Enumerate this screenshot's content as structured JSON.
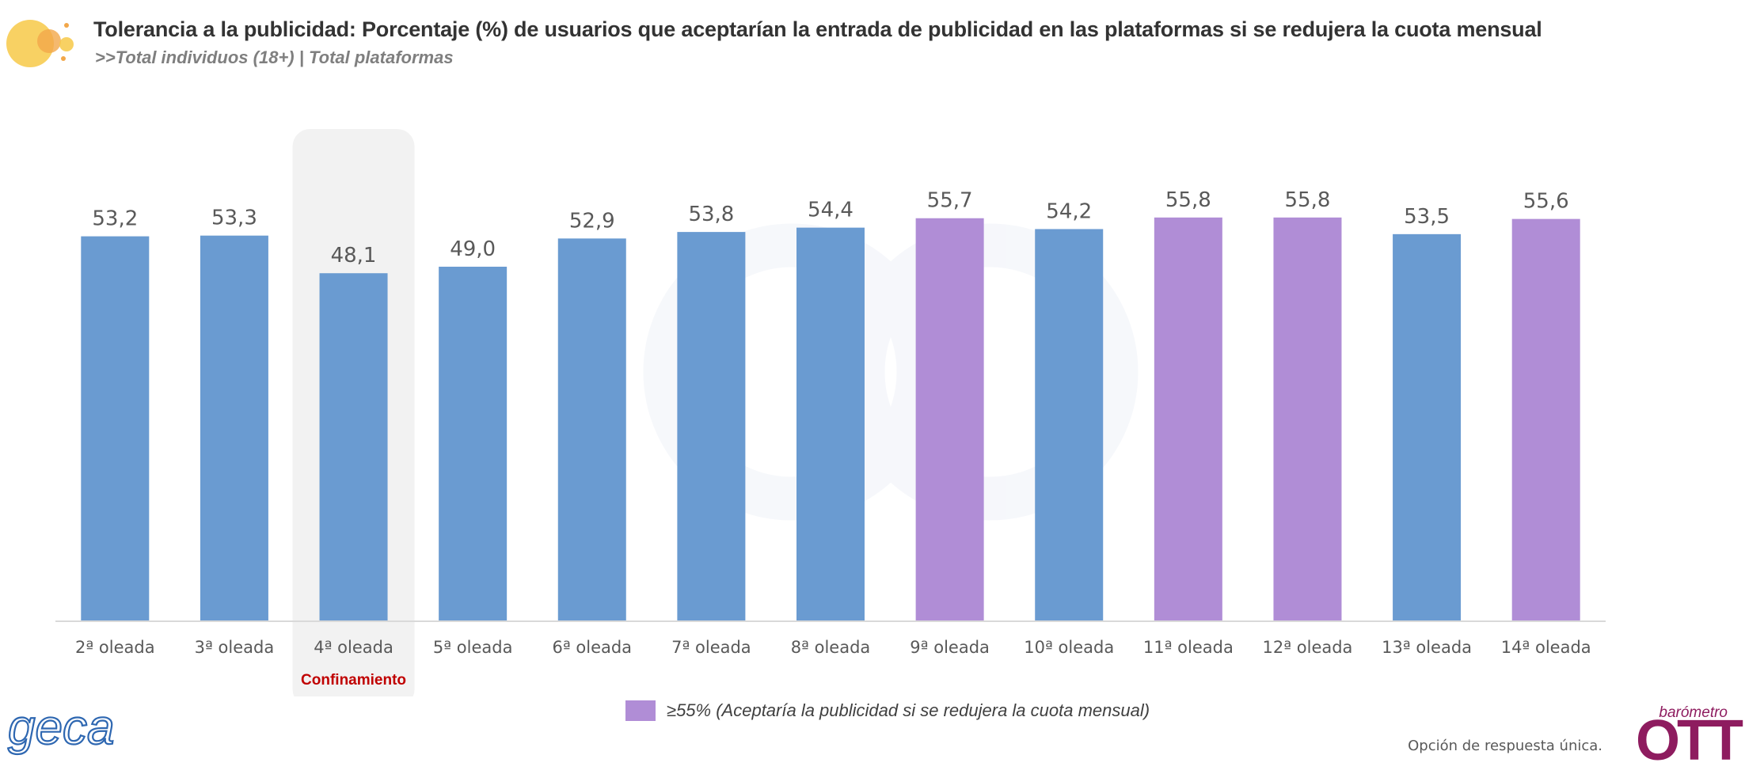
{
  "header": {
    "title": "Tolerancia a la publicidad:  Porcentaje (%) de usuarios que aceptarían la entrada de publicidad en las plataformas si se redujera la cuota mensual",
    "subtitle": ">>Total individuos (18+) | Total plataformas"
  },
  "chart_data": {
    "type": "bar",
    "categories": [
      "2ª oleada",
      "3ª oleada",
      "4ª oleada",
      "5ª oleada",
      "6ª oleada",
      "7ª oleada",
      "8ª oleada",
      "9ª oleada",
      "10ª oleada",
      "11ª oleada",
      "12ª oleada",
      "13ª oleada",
      "14ª oleada"
    ],
    "values": [
      53.2,
      53.3,
      48.1,
      49.0,
      52.9,
      53.8,
      54.4,
      55.7,
      54.2,
      55.8,
      55.8,
      53.5,
      55.6
    ],
    "value_labels": [
      "53,2",
      "53,3",
      "48,1",
      "49,0",
      "52,9",
      "53,8",
      "54,4",
      "55,7",
      "54,2",
      "55,8",
      "55,8",
      "53,5",
      "55,6"
    ],
    "threshold": 55,
    "colors": {
      "default": "#6a9bd1",
      "above_threshold": "#b08dd6"
    },
    "highlight": {
      "category_index": 2,
      "label": "Confinamiento",
      "label_color": "#c00000",
      "band_color": "#f2f2f2"
    },
    "legend": {
      "label": "≥55% (Aceptaría la publicidad si se redujera la cuota mensual)",
      "color": "#b08dd6",
      "position": "bottom-center"
    },
    "grid": false,
    "ylim": [
      0,
      56
    ]
  },
  "footer": {
    "note": "Opción de respuesta única.",
    "brand_left": "geca",
    "brand_right_small": "barómetro",
    "brand_right_big": "OTT"
  }
}
